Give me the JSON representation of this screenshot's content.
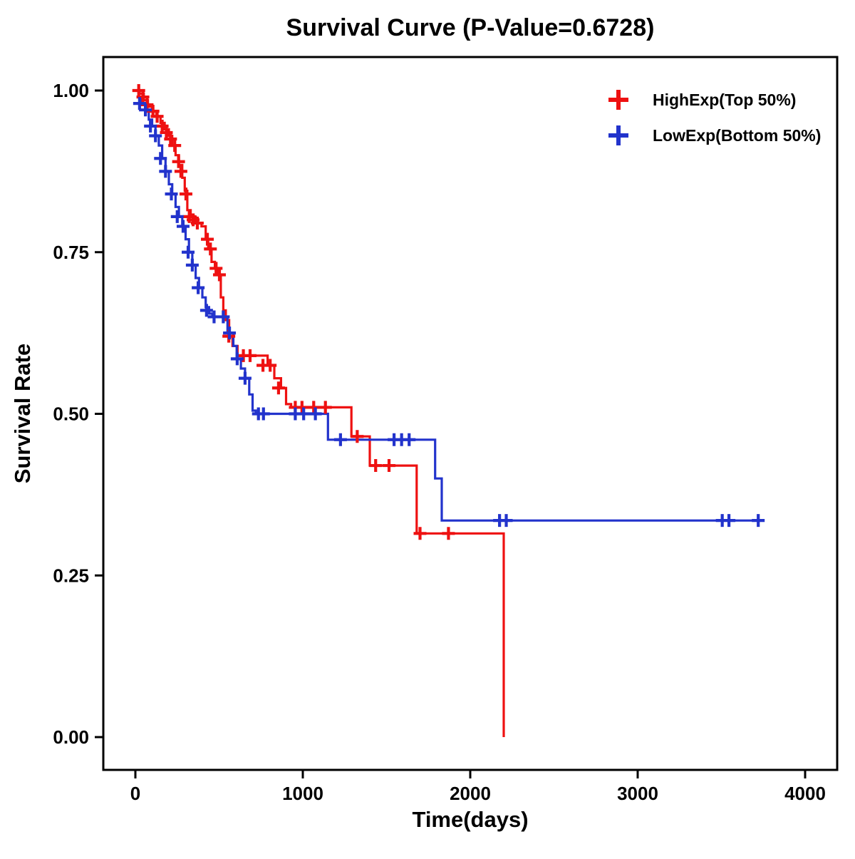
{
  "p_value": "0.6728",
  "chart_data": {
    "type": "line",
    "subtype": "kaplan-meier-step",
    "title": "Survival Curve (P-Value=0.6728)",
    "xlabel": "Time(days)",
    "ylabel": "Survival Rate",
    "xlim": [
      0,
      4000
    ],
    "ylim": [
      0,
      1
    ],
    "xticks": [
      0,
      1000,
      2000,
      3000,
      4000
    ],
    "xtick_labels": [
      "0",
      "1000",
      "2000",
      "3000",
      "4000"
    ],
    "yticks": [
      0,
      0.25,
      0.5,
      0.75,
      1
    ],
    "ytick_labels": [
      "0.00",
      "0.25",
      "0.50",
      "0.75",
      "1.00"
    ],
    "grid": false,
    "legend_position": "top-right",
    "series": [
      {
        "name": "HighExp(Top 50%)",
        "color": "#EE1111",
        "steps": [
          [
            0,
            1.0
          ],
          [
            25,
            0.995
          ],
          [
            50,
            0.985
          ],
          [
            75,
            0.975
          ],
          [
            100,
            0.968
          ],
          [
            125,
            0.96
          ],
          [
            150,
            0.95
          ],
          [
            175,
            0.94
          ],
          [
            200,
            0.93
          ],
          [
            220,
            0.915
          ],
          [
            240,
            0.9
          ],
          [
            260,
            0.885
          ],
          [
            280,
            0.865
          ],
          [
            295,
            0.845
          ],
          [
            310,
            0.815
          ],
          [
            330,
            0.805
          ],
          [
            360,
            0.795
          ],
          [
            395,
            0.79
          ],
          [
            420,
            0.77
          ],
          [
            435,
            0.755
          ],
          [
            455,
            0.735
          ],
          [
            475,
            0.725
          ],
          [
            495,
            0.715
          ],
          [
            510,
            0.68
          ],
          [
            525,
            0.66
          ],
          [
            540,
            0.645
          ],
          [
            560,
            0.62
          ],
          [
            580,
            0.605
          ],
          [
            610,
            0.59
          ],
          [
            790,
            0.575
          ],
          [
            830,
            0.555
          ],
          [
            870,
            0.54
          ],
          [
            900,
            0.515
          ],
          [
            930,
            0.51
          ],
          [
            1290,
            0.465
          ],
          [
            1400,
            0.42
          ],
          [
            1680,
            0.315
          ],
          [
            2200,
            0.0
          ]
        ],
        "censors": [
          [
            20,
            1.0
          ],
          [
            45,
            0.99
          ],
          [
            70,
            0.978
          ],
          [
            105,
            0.968
          ],
          [
            130,
            0.96
          ],
          [
            160,
            0.945
          ],
          [
            185,
            0.935
          ],
          [
            210,
            0.925
          ],
          [
            235,
            0.915
          ],
          [
            258,
            0.89
          ],
          [
            272,
            0.875
          ],
          [
            302,
            0.84
          ],
          [
            322,
            0.805
          ],
          [
            345,
            0.8
          ],
          [
            370,
            0.795
          ],
          [
            430,
            0.77
          ],
          [
            448,
            0.755
          ],
          [
            482,
            0.725
          ],
          [
            502,
            0.715
          ],
          [
            558,
            0.62
          ],
          [
            645,
            0.59
          ],
          [
            685,
            0.59
          ],
          [
            762,
            0.575
          ],
          [
            805,
            0.575
          ],
          [
            855,
            0.54
          ],
          [
            955,
            0.51
          ],
          [
            995,
            0.51
          ],
          [
            1065,
            0.51
          ],
          [
            1135,
            0.51
          ],
          [
            1325,
            0.465
          ],
          [
            1435,
            0.42
          ],
          [
            1515,
            0.42
          ],
          [
            1700,
            0.315
          ],
          [
            1870,
            0.315
          ]
        ]
      },
      {
        "name": "LowExp(Bottom 50%)",
        "color": "#2233CC",
        "steps": [
          [
            0,
            1.0
          ],
          [
            20,
            0.99
          ],
          [
            40,
            0.98
          ],
          [
            60,
            0.97
          ],
          [
            80,
            0.955
          ],
          [
            100,
            0.945
          ],
          [
            120,
            0.93
          ],
          [
            140,
            0.915
          ],
          [
            160,
            0.895
          ],
          [
            180,
            0.875
          ],
          [
            200,
            0.855
          ],
          [
            220,
            0.84
          ],
          [
            240,
            0.82
          ],
          [
            260,
            0.805
          ],
          [
            280,
            0.79
          ],
          [
            300,
            0.77
          ],
          [
            320,
            0.75
          ],
          [
            340,
            0.73
          ],
          [
            360,
            0.71
          ],
          [
            380,
            0.695
          ],
          [
            400,
            0.68
          ],
          [
            420,
            0.665
          ],
          [
            440,
            0.655
          ],
          [
            460,
            0.65
          ],
          [
            550,
            0.625
          ],
          [
            585,
            0.605
          ],
          [
            605,
            0.585
          ],
          [
            630,
            0.57
          ],
          [
            655,
            0.555
          ],
          [
            680,
            0.53
          ],
          [
            700,
            0.505
          ],
          [
            720,
            0.5
          ],
          [
            1150,
            0.46
          ],
          [
            1790,
            0.4
          ],
          [
            1830,
            0.335
          ],
          [
            3720,
            0.335
          ]
        ],
        "censors": [
          [
            25,
            0.98
          ],
          [
            60,
            0.97
          ],
          [
            90,
            0.945
          ],
          [
            120,
            0.93
          ],
          [
            150,
            0.895
          ],
          [
            180,
            0.875
          ],
          [
            215,
            0.84
          ],
          [
            250,
            0.805
          ],
          [
            285,
            0.79
          ],
          [
            315,
            0.75
          ],
          [
            340,
            0.73
          ],
          [
            375,
            0.695
          ],
          [
            425,
            0.66
          ],
          [
            470,
            0.65
          ],
          [
            525,
            0.65
          ],
          [
            562,
            0.625
          ],
          [
            608,
            0.585
          ],
          [
            655,
            0.555
          ],
          [
            735,
            0.5
          ],
          [
            765,
            0.5
          ],
          [
            955,
            0.5
          ],
          [
            1005,
            0.5
          ],
          [
            1075,
            0.5
          ],
          [
            1225,
            0.46
          ],
          [
            1545,
            0.46
          ],
          [
            1590,
            0.46
          ],
          [
            1635,
            0.46
          ],
          [
            2175,
            0.335
          ],
          [
            2215,
            0.335
          ],
          [
            3505,
            0.335
          ],
          [
            3545,
            0.335
          ],
          [
            3720,
            0.335
          ]
        ]
      }
    ]
  }
}
